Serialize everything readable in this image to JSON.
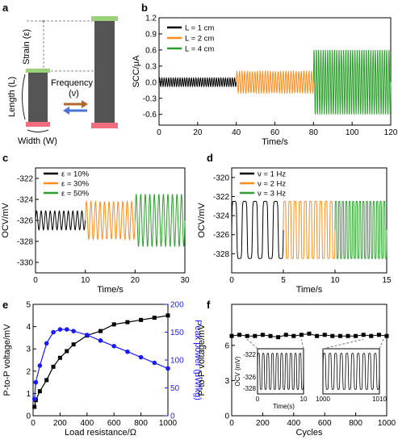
{
  "panels": {
    "a": {
      "letter": "a",
      "labels": {
        "strain": "Strain (ε)",
        "length": "Length (L)",
        "frequency": "Frequency",
        "nu": "(ν)",
        "width": "Width (W)"
      }
    },
    "b": {
      "letter": "b"
    },
    "c": {
      "letter": "c"
    },
    "d": {
      "letter": "d"
    },
    "e": {
      "letter": "e"
    },
    "f": {
      "letter": "f"
    }
  },
  "chart_data": [
    {
      "id": "b",
      "type": "line",
      "xlabel": "Time/s",
      "ylabel": "SCC/μA",
      "xlim": [
        0,
        120
      ],
      "ylim": [
        -0.8,
        1.2
      ],
      "xticks": [
        0,
        20,
        40,
        60,
        80,
        100,
        120
      ],
      "yticks": [
        -0.6,
        -0.3,
        0.0,
        0.3,
        0.6,
        0.9,
        1.2
      ],
      "ytick_labels": [
        "-0.6",
        "-0.3",
        "0.0",
        "0.3",
        "0.6",
        "0.9",
        "1.2"
      ],
      "legend": "top-left",
      "series": [
        {
          "name": "L = 1 cm",
          "color": "#000000",
          "x_range": [
            0,
            40
          ],
          "cycles": 34,
          "baseline": 0.0,
          "amplitude": 0.08
        },
        {
          "name": "L = 2 cm",
          "color": "#ff8c1a",
          "x_range": [
            40,
            80
          ],
          "cycles": 30,
          "baseline": 0.0,
          "amplitude": 0.2
        },
        {
          "name": "L = 4 cm",
          "color": "#2ca02c",
          "x_range": [
            80,
            120
          ],
          "cycles": 34,
          "baseline": 0.0,
          "amplitude": 0.6
        }
      ]
    },
    {
      "id": "c",
      "type": "line",
      "xlabel": "Time/s",
      "ylabel": "OCV/mV",
      "xlim": [
        0,
        30
      ],
      "ylim": [
        -331,
        -321
      ],
      "xticks": [
        0,
        10,
        20,
        30
      ],
      "yticks": [
        -330,
        -328,
        -326,
        -324,
        -322
      ],
      "legend": "top-left",
      "series": [
        {
          "name": "ε = 10%",
          "color": "#000000",
          "x_range": [
            0,
            10
          ],
          "cycles": 11,
          "baseline": -326,
          "amplitude": 0.9
        },
        {
          "name": "ε = 30%",
          "color": "#ff8c1a",
          "x_range": [
            10,
            20
          ],
          "cycles": 11,
          "baseline": -326,
          "amplitude": 1.8
        },
        {
          "name": "ε = 50%",
          "color": "#2ca02c",
          "x_range": [
            20,
            30
          ],
          "cycles": 11,
          "baseline": -326,
          "amplitude": 2.5
        }
      ]
    },
    {
      "id": "d",
      "type": "line",
      "xlabel": "Time/s",
      "ylabel": "OCV/mV",
      "xlim": [
        0,
        15
      ],
      "ylim": [
        -330,
        -319
      ],
      "xticks": [
        0,
        5,
        10,
        15
      ],
      "yticks": [
        -328,
        -326,
        -324,
        -322,
        -320
      ],
      "legend": "top-left",
      "series": [
        {
          "name": "ν = 1 Hz",
          "color": "#000000",
          "x_range": [
            0,
            5
          ],
          "cycles": 5,
          "baseline": -325.5,
          "amplitude": 3.0
        },
        {
          "name": "ν = 2 Hz",
          "color": "#ff8c1a",
          "x_range": [
            5,
            10
          ],
          "cycles": 10,
          "baseline": -325.5,
          "amplitude": 3.0
        },
        {
          "name": "ν = 3 Hz",
          "color": "#2ca02c",
          "x_range": [
            10,
            15
          ],
          "cycles": 15,
          "baseline": -325.5,
          "amplitude": 3.0
        }
      ]
    },
    {
      "id": "e",
      "type": "scatter",
      "xlabel": "Load resistance/Ω",
      "ylabel": "P-to-P voltage/mV",
      "ylabel_right": "Peak power (μW/kg)",
      "xlim": [
        0,
        1000
      ],
      "ylim": [
        0,
        5
      ],
      "ylim_right": [
        0,
        200
      ],
      "xticks": [
        0,
        200,
        400,
        600,
        800,
        1000
      ],
      "yticks": [
        0,
        1,
        2,
        3,
        4,
        5
      ],
      "yticks_right": [
        0,
        50,
        100,
        150,
        200
      ],
      "series": [
        {
          "name": "P-to-P voltage",
          "color": "#000000",
          "axis": "left",
          "marker": "square",
          "x": [
            10,
            20,
            50,
            100,
            150,
            200,
            250,
            300,
            400,
            500,
            600,
            700,
            800,
            900,
            1000
          ],
          "y": [
            0.4,
            0.7,
            1.1,
            1.6,
            2.2,
            2.6,
            2.9,
            3.2,
            3.6,
            3.8,
            4.1,
            4.2,
            4.3,
            4.4,
            4.5
          ]
        },
        {
          "name": "Peak power",
          "color": "#1a1aff",
          "axis": "right",
          "marker": "circle",
          "x": [
            10,
            20,
            50,
            100,
            150,
            200,
            250,
            300,
            400,
            500,
            600,
            700,
            800,
            900,
            1000
          ],
          "y": [
            30,
            60,
            90,
            130,
            150,
            155,
            155,
            152,
            145,
            135,
            125,
            115,
            105,
            95,
            85
          ]
        }
      ]
    },
    {
      "id": "f",
      "type": "scatter",
      "xlabel": "Cycles",
      "ylabel": "P-to-P voltage/mV",
      "xlim": [
        0,
        1000
      ],
      "ylim": [
        0,
        9.5
      ],
      "xticks": [
        0,
        200,
        400,
        600,
        800,
        1000
      ],
      "yticks": [
        0,
        3,
        6
      ],
      "series": [
        {
          "name": "P-to-P voltage",
          "color": "#000000",
          "marker": "square",
          "x": [
            0,
            50,
            100,
            150,
            200,
            250,
            300,
            350,
            400,
            450,
            500,
            550,
            600,
            650,
            700,
            750,
            800,
            850,
            900,
            950,
            1000
          ],
          "y": [
            6.8,
            6.9,
            6.8,
            6.8,
            6.9,
            6.8,
            6.7,
            6.9,
            6.8,
            6.9,
            7.0,
            6.8,
            6.9,
            6.8,
            6.8,
            6.8,
            6.8,
            6.9,
            6.8,
            6.9,
            6.8
          ]
        }
      ],
      "insets": [
        {
          "id": "f1",
          "ylabel": "OCV (mV)",
          "xlabel": "Time(s)",
          "xlim": [
            0,
            10
          ],
          "ylim": [
            -329,
            -321
          ],
          "xticks": [
            0,
            10
          ],
          "yticks": [
            -322,
            -326,
            -328
          ],
          "cycles": 10
        },
        {
          "id": "f2",
          "xlim": [
            1000,
            1010
          ],
          "ylim": [
            -329,
            -321
          ],
          "xticks": [
            1000,
            1010
          ],
          "cycles": 10
        }
      ]
    }
  ]
}
